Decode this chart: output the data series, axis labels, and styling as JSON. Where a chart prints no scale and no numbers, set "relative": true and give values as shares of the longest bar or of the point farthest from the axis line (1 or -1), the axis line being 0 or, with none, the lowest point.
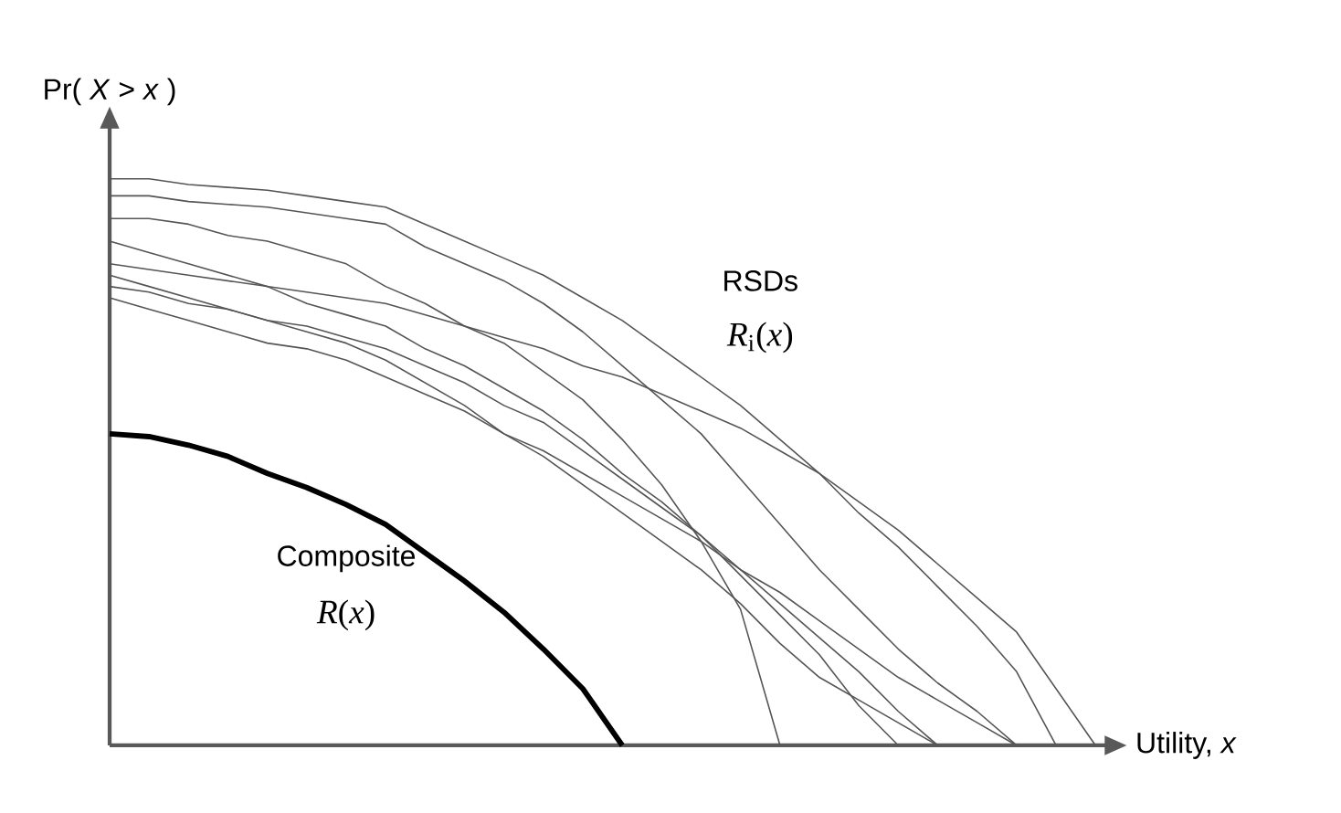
{
  "chart_data": {
    "type": "line",
    "relative": true,
    "categories": [
      null,
      null,
      null,
      null,
      null,
      null,
      null,
      null,
      null,
      null,
      null,
      null,
      null,
      null,
      null,
      null,
      null,
      null,
      null,
      null,
      null,
      null,
      null,
      null,
      null,
      null
    ],
    "xlabel": "Utility, *x*",
    "ylabel": "Pr( *X* > *x* )",
    "annotations": [
      "Composite",
      "*R*(*x*)",
      "RSDs",
      "*R*$_{i}$(*x*)"
    ],
    "series": [
      {
        "color": "#000000",
        "values": [
          0.55,
          0.545,
          0.53,
          0.51,
          0.48,
          0.455,
          0.425,
          0.39,
          0.34,
          0.29,
          0.235,
          0.17,
          0.1,
          0,
          null,
          null,
          null,
          null,
          null,
          null,
          null,
          null,
          null,
          null,
          null,
          null
        ]
      },
      {
        "color": "#555555",
        "values": [
          1,
          1,
          0.99,
          0.985,
          0.98,
          0.97,
          0.96,
          0.95,
          0.92,
          0.89,
          0.86,
          0.83,
          0.79,
          0.75,
          0.7,
          0.65,
          0.6,
          0.54,
          0.48,
          0.41,
          0.35,
          0.28,
          0.21,
          0.13,
          0,
          null
        ]
      },
      {
        "color": "#555555",
        "values": [
          0.97,
          0.97,
          0.96,
          0.955,
          0.95,
          0.94,
          0.93,
          0.92,
          0.88,
          0.85,
          0.82,
          0.78,
          0.73,
          0.67,
          0.61,
          0.55,
          0.47,
          0.39,
          0.31,
          0.24,
          0.17,
          0.11,
          0.06,
          0,
          null,
          null
        ]
      },
      {
        "color": "#555555",
        "values": [
          0.93,
          0.93,
          0.92,
          0.9,
          0.89,
          0.87,
          0.85,
          0.81,
          0.78,
          0.74,
          0.71,
          0.66,
          0.61,
          0.54,
          0.46,
          0.36,
          0.24,
          0,
          null,
          null,
          null,
          null,
          null,
          null,
          null,
          null
        ]
      },
      {
        "color": "#555555",
        "values": [
          0.89,
          0.87,
          0.85,
          0.83,
          0.81,
          0.78,
          0.76,
          0.74,
          0.7,
          0.67,
          0.63,
          0.59,
          0.54,
          0.48,
          0.43,
          0.37,
          0.3,
          0.23,
          0.16,
          0.07,
          0,
          null,
          null,
          null,
          null,
          null
        ]
      },
      {
        "color": "#555555",
        "values": [
          0.85,
          0.84,
          0.83,
          0.82,
          0.81,
          0.8,
          0.79,
          0.78,
          0.76,
          0.74,
          0.72,
          0.7,
          0.67,
          0.65,
          0.62,
          0.59,
          0.56,
          0.52,
          0.48,
          0.43,
          0.38,
          0.32,
          0.26,
          0.2,
          0.1,
          0
        ]
      },
      {
        "color": "#555555",
        "values": [
          0.81,
          0.8,
          0.78,
          0.77,
          0.75,
          0.74,
          0.72,
          0.7,
          0.67,
          0.64,
          0.6,
          0.57,
          0.52,
          0.47,
          0.42,
          0.37,
          0.31,
          0.25,
          0.19,
          0.13,
          0.06,
          0,
          null,
          null,
          null,
          null
        ]
      },
      {
        "color": "#555555",
        "values": [
          0.79,
          0.77,
          0.75,
          0.73,
          0.71,
          0.7,
          0.68,
          0.65,
          0.62,
          0.59,
          0.55,
          0.52,
          0.48,
          0.44,
          0.4,
          0.36,
          0.31,
          0.27,
          0.22,
          0.17,
          0.12,
          0.08,
          0.04,
          0,
          null,
          null
        ]
      },
      {
        "color": "#555555",
        "values": [
          0.83,
          0.81,
          0.79,
          0.77,
          0.75,
          0.73,
          0.71,
          0.68,
          0.64,
          0.6,
          0.55,
          0.51,
          0.46,
          0.41,
          0.36,
          0.31,
          0.25,
          0.18,
          0.12,
          0.08,
          0.04,
          0,
          null,
          null,
          null,
          null
        ]
      }
    ]
  }
}
